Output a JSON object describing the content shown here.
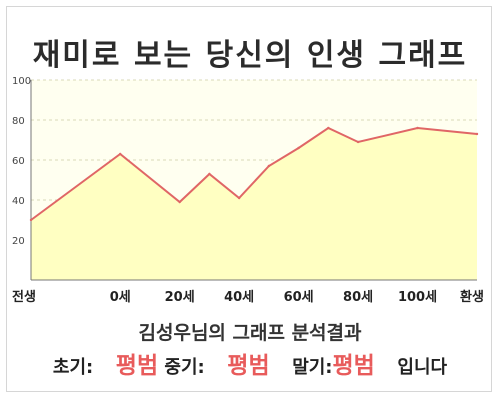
{
  "title": "재미로 보는 당신의 인생 그래프",
  "summary": {
    "heading": "김성우님의 그래프 분석결과",
    "early_label": "초기:",
    "early_value": "평범",
    "mid_label": "중기:",
    "mid_value": "평범",
    "late_label": "말기:",
    "late_value": "평범",
    "ending": "입니다"
  },
  "chart_data": {
    "type": "area",
    "title": "재미로 보는 당신의 인생 그래프",
    "xlabel": "",
    "ylabel": "",
    "ylim": [
      0,
      100
    ],
    "yticks": [
      20,
      40,
      60,
      80,
      100
    ],
    "x_tick_labels": [
      "전생",
      "0세",
      "20세",
      "40세",
      "60세",
      "80세",
      "100세",
      "환생"
    ],
    "x_tick_positions": [
      -30,
      0,
      20,
      40,
      60,
      80,
      100,
      120
    ],
    "xlim": [
      -30,
      120
    ],
    "points": [
      {
        "x": -30,
        "y": 30
      },
      {
        "x": 0,
        "y": 63
      },
      {
        "x": 20,
        "y": 39
      },
      {
        "x": 30,
        "y": 53
      },
      {
        "x": 40,
        "y": 41
      },
      {
        "x": 50,
        "y": 57
      },
      {
        "x": 60,
        "y": 66
      },
      {
        "x": 70,
        "y": 76
      },
      {
        "x": 80,
        "y": 69
      },
      {
        "x": 100,
        "y": 76
      },
      {
        "x": 120,
        "y": 73
      }
    ],
    "grid": true,
    "colors": {
      "line": "#e06666",
      "fill": "#ffffc2",
      "background": "#fffff0",
      "grid": "#d8d8b8"
    }
  }
}
